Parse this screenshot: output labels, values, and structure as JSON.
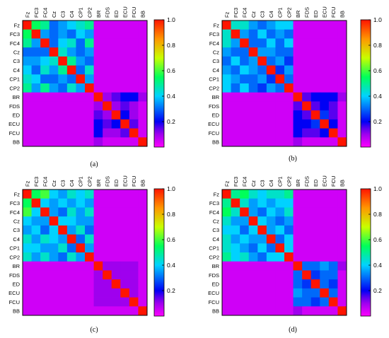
{
  "chart_data": [
    {
      "type": "heatmap",
      "caption": "(a)",
      "labels": [
        "Fz",
        "FC3",
        "FC4",
        "Cz",
        "C3",
        "C4",
        "CP1",
        "CP2",
        "BR",
        "FDS",
        "ED",
        "ECU",
        "FCU",
        "BB"
      ],
      "colorbar": {
        "range": [
          0,
          1
        ],
        "ticks": [
          "0.2",
          "0.4",
          "0.6",
          "0.8",
          "1.0"
        ]
      },
      "values": [
        [
          1.0,
          0.55,
          0.5,
          0.3,
          0.35,
          0.4,
          0.45,
          0.5,
          0.05,
          0.05,
          0.05,
          0.05,
          0.05,
          0.05
        ],
        [
          0.55,
          1.0,
          0.35,
          0.3,
          0.35,
          0.3,
          0.4,
          0.35,
          0.05,
          0.05,
          0.05,
          0.05,
          0.05,
          0.05
        ],
        [
          0.5,
          0.35,
          1.0,
          0.3,
          0.4,
          0.45,
          0.3,
          0.5,
          0.05,
          0.05,
          0.05,
          0.05,
          0.05,
          0.05
        ],
        [
          0.3,
          0.3,
          0.3,
          1.0,
          0.45,
          0.35,
          0.3,
          0.35,
          0.05,
          0.05,
          0.05,
          0.05,
          0.05,
          0.05
        ],
        [
          0.35,
          0.35,
          0.4,
          0.45,
          1.0,
          0.5,
          0.35,
          0.3,
          0.05,
          0.05,
          0.05,
          0.05,
          0.05,
          0.05
        ],
        [
          0.4,
          0.3,
          0.45,
          0.35,
          0.5,
          1.0,
          0.3,
          0.45,
          0.05,
          0.05,
          0.05,
          0.05,
          0.05,
          0.05
        ],
        [
          0.45,
          0.4,
          0.3,
          0.3,
          0.35,
          0.3,
          1.0,
          0.35,
          0.05,
          0.05,
          0.05,
          0.05,
          0.05,
          0.05
        ],
        [
          0.5,
          0.35,
          0.5,
          0.35,
          0.3,
          0.45,
          0.35,
          1.0,
          0.05,
          0.05,
          0.05,
          0.05,
          0.05,
          0.05
        ],
        [
          0.05,
          0.05,
          0.05,
          0.05,
          0.05,
          0.05,
          0.05,
          0.05,
          1.0,
          0.1,
          0.15,
          0.2,
          0.2,
          0.1
        ],
        [
          0.05,
          0.05,
          0.05,
          0.05,
          0.05,
          0.05,
          0.05,
          0.05,
          0.1,
          1.0,
          0.1,
          0.15,
          0.1,
          0.05
        ],
        [
          0.05,
          0.05,
          0.05,
          0.05,
          0.05,
          0.05,
          0.05,
          0.05,
          0.15,
          0.1,
          1.0,
          0.2,
          0.1,
          0.05
        ],
        [
          0.05,
          0.05,
          0.05,
          0.05,
          0.05,
          0.05,
          0.05,
          0.05,
          0.2,
          0.15,
          0.2,
          1.0,
          0.15,
          0.05
        ],
        [
          0.05,
          0.05,
          0.05,
          0.05,
          0.05,
          0.05,
          0.05,
          0.05,
          0.2,
          0.1,
          0.1,
          0.15,
          1.0,
          0.05
        ],
        [
          0.05,
          0.05,
          0.05,
          0.05,
          0.05,
          0.05,
          0.05,
          0.05,
          0.1,
          0.05,
          0.05,
          0.05,
          0.05,
          1.0
        ]
      ]
    },
    {
      "type": "heatmap",
      "caption": "(b)",
      "labels": [
        "Fz",
        "FC3",
        "FC4",
        "Cz",
        "C3",
        "C4",
        "CP1",
        "CP2",
        "BR",
        "FDS",
        "ED",
        "ECU",
        "FCU",
        "BB"
      ],
      "colorbar": {
        "range": [
          0,
          1
        ],
        "ticks": [
          "0.2",
          "0.4",
          "0.6",
          "0.8",
          "1.0"
        ]
      },
      "values": [
        [
          1.0,
          0.45,
          0.45,
          0.35,
          0.3,
          0.35,
          0.4,
          0.4,
          0.05,
          0.05,
          0.05,
          0.05,
          0.05,
          0.05
        ],
        [
          0.45,
          1.0,
          0.35,
          0.3,
          0.4,
          0.3,
          0.35,
          0.3,
          0.05,
          0.05,
          0.05,
          0.05,
          0.05,
          0.05
        ],
        [
          0.45,
          0.35,
          1.0,
          0.3,
          0.3,
          0.4,
          0.3,
          0.4,
          0.05,
          0.05,
          0.05,
          0.05,
          0.05,
          0.05
        ],
        [
          0.35,
          0.3,
          0.3,
          1.0,
          0.35,
          0.35,
          0.3,
          0.3,
          0.05,
          0.05,
          0.05,
          0.05,
          0.05,
          0.05
        ],
        [
          0.3,
          0.4,
          0.3,
          0.35,
          1.0,
          0.3,
          0.35,
          0.25,
          0.05,
          0.05,
          0.05,
          0.05,
          0.05,
          0.05
        ],
        [
          0.35,
          0.3,
          0.4,
          0.35,
          0.3,
          1.0,
          0.25,
          0.35,
          0.05,
          0.05,
          0.05,
          0.05,
          0.05,
          0.05
        ],
        [
          0.4,
          0.35,
          0.3,
          0.3,
          0.35,
          0.25,
          1.0,
          0.3,
          0.05,
          0.05,
          0.05,
          0.05,
          0.05,
          0.05
        ],
        [
          0.4,
          0.3,
          0.4,
          0.3,
          0.25,
          0.35,
          0.3,
          1.0,
          0.05,
          0.05,
          0.05,
          0.05,
          0.05,
          0.05
        ],
        [
          0.05,
          0.05,
          0.05,
          0.05,
          0.05,
          0.05,
          0.05,
          0.05,
          1.0,
          0.15,
          0.2,
          0.2,
          0.2,
          0.1
        ],
        [
          0.05,
          0.05,
          0.05,
          0.05,
          0.05,
          0.05,
          0.05,
          0.05,
          0.15,
          1.0,
          0.15,
          0.2,
          0.15,
          0.05
        ],
        [
          0.05,
          0.05,
          0.05,
          0.05,
          0.05,
          0.05,
          0.05,
          0.05,
          0.2,
          0.15,
          1.0,
          0.25,
          0.15,
          0.05
        ],
        [
          0.05,
          0.05,
          0.05,
          0.05,
          0.05,
          0.05,
          0.05,
          0.05,
          0.2,
          0.2,
          0.25,
          1.0,
          0.2,
          0.05
        ],
        [
          0.05,
          0.05,
          0.05,
          0.05,
          0.05,
          0.05,
          0.05,
          0.05,
          0.2,
          0.15,
          0.15,
          0.2,
          1.0,
          0.05
        ],
        [
          0.05,
          0.05,
          0.05,
          0.05,
          0.05,
          0.05,
          0.05,
          0.05,
          0.1,
          0.05,
          0.05,
          0.05,
          0.05,
          1.0
        ]
      ]
    },
    {
      "type": "heatmap",
      "caption": "(c)",
      "labels": [
        "Fz",
        "FC3",
        "FC4",
        "Cz",
        "C3",
        "C4",
        "CP1",
        "CP2",
        "BR",
        "FDS",
        "ED",
        "ECU",
        "FCU",
        "BB"
      ],
      "colorbar": {
        "range": [
          0,
          1
        ],
        "ticks": [
          "0.2",
          "0.4",
          "0.6",
          "0.8",
          "1.0"
        ]
      },
      "values": [
        [
          1.0,
          0.55,
          0.6,
          0.4,
          0.35,
          0.45,
          0.4,
          0.45,
          0.05,
          0.05,
          0.05,
          0.05,
          0.05,
          0.05
        ],
        [
          0.55,
          1.0,
          0.4,
          0.35,
          0.4,
          0.35,
          0.4,
          0.35,
          0.05,
          0.05,
          0.05,
          0.05,
          0.05,
          0.05
        ],
        [
          0.6,
          0.4,
          1.0,
          0.35,
          0.3,
          0.45,
          0.35,
          0.45,
          0.05,
          0.05,
          0.05,
          0.05,
          0.05,
          0.05
        ],
        [
          0.4,
          0.35,
          0.35,
          1.0,
          0.4,
          0.4,
          0.35,
          0.35,
          0.05,
          0.05,
          0.05,
          0.05,
          0.05,
          0.05
        ],
        [
          0.35,
          0.4,
          0.3,
          0.4,
          1.0,
          0.35,
          0.45,
          0.3,
          0.05,
          0.05,
          0.05,
          0.05,
          0.05,
          0.05
        ],
        [
          0.45,
          0.35,
          0.45,
          0.4,
          0.35,
          1.0,
          0.3,
          0.45,
          0.05,
          0.05,
          0.05,
          0.05,
          0.05,
          0.05
        ],
        [
          0.4,
          0.4,
          0.35,
          0.35,
          0.45,
          0.3,
          1.0,
          0.35,
          0.05,
          0.05,
          0.05,
          0.05,
          0.05,
          0.05
        ],
        [
          0.45,
          0.35,
          0.45,
          0.35,
          0.3,
          0.45,
          0.35,
          1.0,
          0.05,
          0.05,
          0.05,
          0.05,
          0.05,
          0.05
        ],
        [
          0.05,
          0.05,
          0.05,
          0.05,
          0.05,
          0.05,
          0.05,
          0.05,
          1.0,
          0.1,
          0.1,
          0.1,
          0.1,
          0.05
        ],
        [
          0.05,
          0.05,
          0.05,
          0.05,
          0.05,
          0.05,
          0.05,
          0.05,
          0.1,
          1.0,
          0.1,
          0.1,
          0.1,
          0.05
        ],
        [
          0.05,
          0.05,
          0.05,
          0.05,
          0.05,
          0.05,
          0.05,
          0.05,
          0.1,
          0.1,
          1.0,
          0.1,
          0.1,
          0.05
        ],
        [
          0.05,
          0.05,
          0.05,
          0.05,
          0.05,
          0.05,
          0.05,
          0.05,
          0.1,
          0.1,
          0.1,
          1.0,
          0.1,
          0.05
        ],
        [
          0.05,
          0.05,
          0.05,
          0.05,
          0.05,
          0.05,
          0.05,
          0.05,
          0.1,
          0.1,
          0.1,
          0.1,
          1.0,
          0.05
        ],
        [
          0.05,
          0.05,
          0.05,
          0.05,
          0.05,
          0.05,
          0.05,
          0.05,
          0.05,
          0.05,
          0.05,
          0.05,
          0.05,
          1.0
        ]
      ]
    },
    {
      "type": "heatmap",
      "caption": "(d)",
      "labels": [
        "Fz",
        "FC3",
        "FC4",
        "Cz",
        "C3",
        "C4",
        "CP1",
        "CP2",
        "BR",
        "FDS",
        "ED",
        "ECU",
        "FCU",
        "BB"
      ],
      "colorbar": {
        "range": [
          0,
          1
        ],
        "ticks": [
          "0.2",
          "0.4",
          "0.6",
          "0.8",
          "1.0"
        ]
      },
      "values": [
        [
          1.0,
          0.5,
          0.55,
          0.45,
          0.4,
          0.45,
          0.45,
          0.5,
          0.05,
          0.05,
          0.05,
          0.05,
          0.05,
          0.05
        ],
        [
          0.5,
          1.0,
          0.45,
          0.35,
          0.4,
          0.35,
          0.4,
          0.4,
          0.05,
          0.05,
          0.05,
          0.05,
          0.05,
          0.05
        ],
        [
          0.55,
          0.45,
          1.0,
          0.35,
          0.3,
          0.4,
          0.35,
          0.45,
          0.05,
          0.05,
          0.05,
          0.05,
          0.05,
          0.05
        ],
        [
          0.45,
          0.35,
          0.35,
          1.0,
          0.4,
          0.35,
          0.3,
          0.35,
          0.05,
          0.05,
          0.05,
          0.05,
          0.05,
          0.05
        ],
        [
          0.4,
          0.4,
          0.3,
          0.4,
          1.0,
          0.35,
          0.4,
          0.3,
          0.05,
          0.05,
          0.05,
          0.05,
          0.05,
          0.05
        ],
        [
          0.45,
          0.35,
          0.4,
          0.35,
          0.35,
          1.0,
          0.3,
          0.4,
          0.05,
          0.05,
          0.05,
          0.05,
          0.05,
          0.05
        ],
        [
          0.45,
          0.4,
          0.35,
          0.3,
          0.4,
          0.3,
          1.0,
          0.4,
          0.05,
          0.05,
          0.05,
          0.05,
          0.05,
          0.05
        ],
        [
          0.5,
          0.4,
          0.45,
          0.35,
          0.3,
          0.4,
          0.4,
          1.0,
          0.05,
          0.05,
          0.05,
          0.05,
          0.05,
          0.05
        ],
        [
          0.05,
          0.05,
          0.05,
          0.05,
          0.05,
          0.05,
          0.05,
          0.05,
          1.0,
          0.3,
          0.3,
          0.35,
          0.3,
          0.1
        ],
        [
          0.05,
          0.05,
          0.05,
          0.05,
          0.05,
          0.05,
          0.05,
          0.05,
          0.3,
          1.0,
          0.25,
          0.3,
          0.3,
          0.05
        ],
        [
          0.05,
          0.05,
          0.05,
          0.05,
          0.05,
          0.05,
          0.05,
          0.05,
          0.3,
          0.25,
          1.0,
          0.3,
          0.25,
          0.05
        ],
        [
          0.05,
          0.05,
          0.05,
          0.05,
          0.05,
          0.05,
          0.05,
          0.05,
          0.35,
          0.3,
          0.3,
          1.0,
          0.3,
          0.05
        ],
        [
          0.05,
          0.05,
          0.05,
          0.05,
          0.05,
          0.05,
          0.05,
          0.05,
          0.3,
          0.3,
          0.25,
          0.3,
          1.0,
          0.05
        ],
        [
          0.05,
          0.05,
          0.05,
          0.05,
          0.05,
          0.05,
          0.05,
          0.05,
          0.1,
          0.05,
          0.05,
          0.05,
          0.05,
          1.0
        ]
      ]
    }
  ]
}
